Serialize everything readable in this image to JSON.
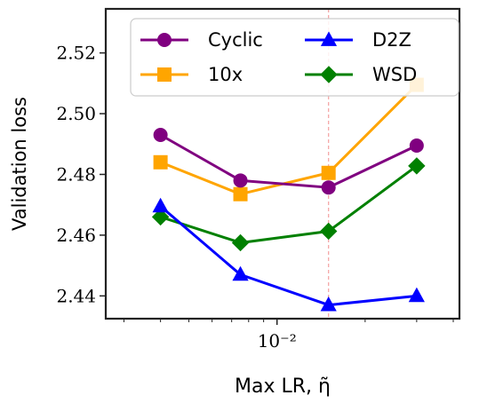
{
  "chart_data": {
    "type": "line",
    "title": "",
    "xlabel": "Max LR, η̃",
    "ylabel": "Validation loss",
    "x_scale": "log",
    "x_tick_labels": [
      {
        "value": 0.01,
        "label": "10⁻²"
      }
    ],
    "ylim": [
      2.4325,
      2.5345
    ],
    "y_ticks": [
      2.44,
      2.46,
      2.48,
      2.5,
      2.52
    ],
    "y_tick_labels": [
      "2.44",
      "2.46",
      "2.48",
      "2.50",
      "2.52"
    ],
    "x_points": [
      0.004,
      0.0075,
      0.015,
      0.03
    ],
    "vertical_reference_line": 0.015,
    "grid": false,
    "legend_position": "top",
    "series": [
      {
        "name": "Cyclic",
        "color": "#800080",
        "marker": "circle",
        "values": [
          2.493,
          2.478,
          2.4757,
          2.4895
        ]
      },
      {
        "name": "10x",
        "color": "#FFA500",
        "marker": "square",
        "values": [
          2.484,
          2.4735,
          2.4805,
          2.5095
        ]
      },
      {
        "name": "D2Z",
        "color": "#0000FF",
        "marker": "triangle",
        "values": [
          2.4695,
          2.447,
          2.437,
          2.44
        ]
      },
      {
        "name": "WSD",
        "color": "#008000",
        "marker": "diamond",
        "values": [
          2.466,
          2.4575,
          2.4613,
          2.4828
        ]
      }
    ]
  }
}
